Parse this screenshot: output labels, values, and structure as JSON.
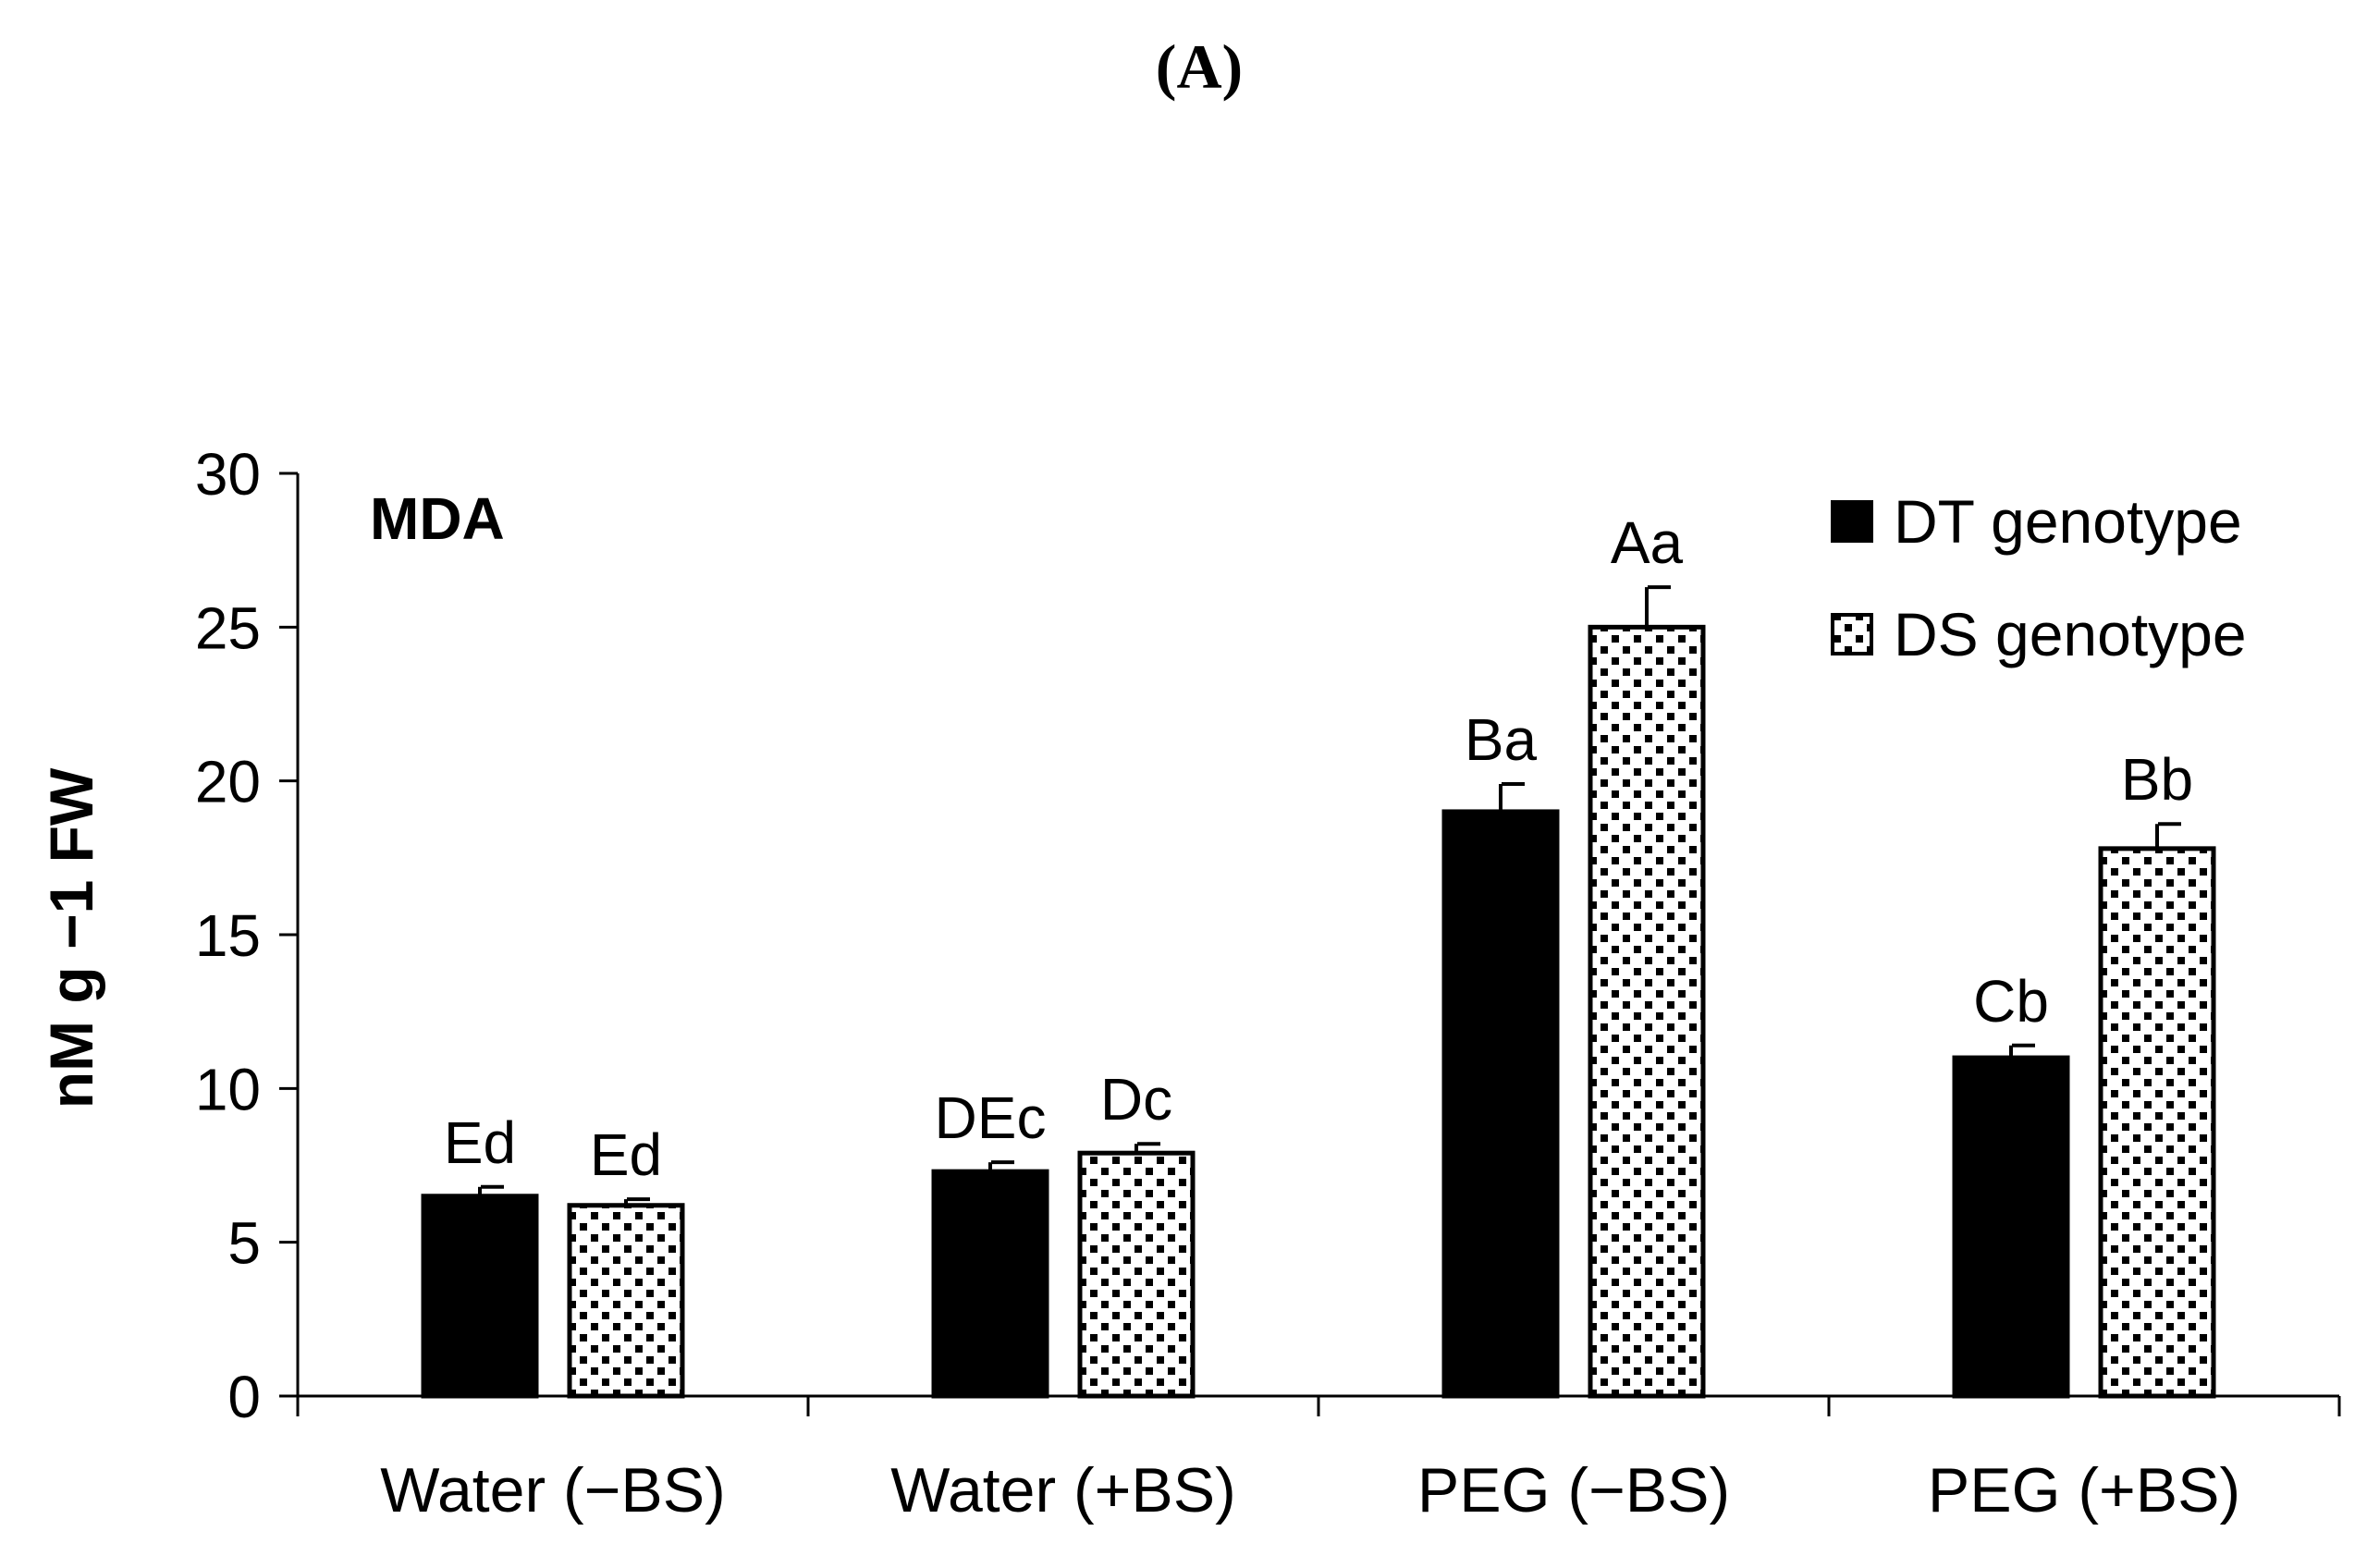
{
  "panel_label": "(A)",
  "chart_data": {
    "type": "bar",
    "title": "MDA",
    "xlabel": "",
    "ylabel": "nM g −1 FW",
    "ylim": [
      0,
      30
    ],
    "yticks": [
      0,
      5,
      10,
      15,
      20,
      25,
      30
    ],
    "grid": false,
    "legend_position": "top-right",
    "categories": [
      "Water (−BS)",
      "Water (+BS)",
      "PEG (−BS)",
      "PEG (+BS)"
    ],
    "series": [
      {
        "name": "DT genotype",
        "fill": "solid",
        "color": "#000000",
        "values": [
          6.5,
          7.3,
          19.0,
          11.0
        ],
        "errors": [
          0.3,
          0.3,
          0.9,
          0.4
        ],
        "labels": [
          "Ed",
          "DEc",
          "Ba",
          "Cb"
        ]
      },
      {
        "name": "DS genotype",
        "fill": "dotted",
        "color": "#000000",
        "values": [
          6.2,
          7.9,
          25.0,
          17.8
        ],
        "errors": [
          0.2,
          0.3,
          1.3,
          0.8
        ],
        "labels": [
          "Ed",
          "Dc",
          "Aa",
          "Bb"
        ]
      }
    ]
  }
}
